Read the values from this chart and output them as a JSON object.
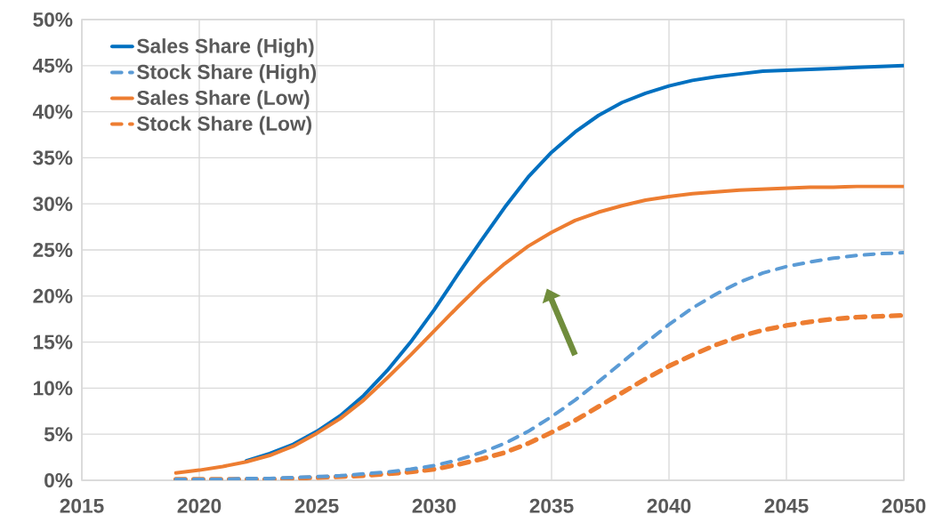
{
  "chart_data": {
    "type": "line",
    "x": [
      2019,
      2020,
      2021,
      2022,
      2023,
      2024,
      2025,
      2026,
      2027,
      2028,
      2029,
      2030,
      2031,
      2032,
      2033,
      2034,
      2035,
      2036,
      2037,
      2038,
      2039,
      2040,
      2041,
      2042,
      2043,
      2044,
      2045,
      2046,
      2047,
      2048,
      2049,
      2050
    ],
    "series": [
      {
        "name": "Sales Share (High)",
        "color": "#0070c0",
        "line_style": "solid",
        "values": [
          null,
          null,
          null,
          2.1,
          2.9,
          3.9,
          5.3,
          7.0,
          9.2,
          11.9,
          15.0,
          18.5,
          22.3,
          26.0,
          29.6,
          32.9,
          35.6,
          37.8,
          39.6,
          41.0,
          42.0,
          42.8,
          43.4,
          43.8,
          44.1,
          44.4,
          44.5,
          44.6,
          44.7,
          44.8,
          44.9,
          45.0
        ]
      },
      {
        "name": "Stock Share (High)",
        "color": "#5b9bd5",
        "line_style": "dashed",
        "values": [
          0.1,
          0.1,
          0.1,
          0.2,
          0.2,
          0.3,
          0.4,
          0.5,
          0.7,
          0.9,
          1.2,
          1.6,
          2.2,
          3.0,
          4.0,
          5.3,
          6.9,
          8.7,
          10.7,
          12.8,
          14.9,
          16.9,
          18.7,
          20.2,
          21.5,
          22.5,
          23.2,
          23.7,
          24.1,
          24.4,
          24.6,
          24.7
        ]
      },
      {
        "name": "Sales Share (Low)",
        "color": "#ed7d31",
        "line_style": "solid",
        "values": [
          0.8,
          1.1,
          1.5,
          2.0,
          2.7,
          3.7,
          5.1,
          6.7,
          8.7,
          11.1,
          13.6,
          16.2,
          18.8,
          21.3,
          23.5,
          25.4,
          26.9,
          28.2,
          29.1,
          29.8,
          30.4,
          30.8,
          31.1,
          31.3,
          31.5,
          31.6,
          31.7,
          31.8,
          31.8,
          31.9,
          31.9,
          31.9
        ]
      },
      {
        "name": "Stock Share (Low)",
        "color": "#ed7d31",
        "line_style": "dashed",
        "values": [
          0.1,
          0.1,
          0.1,
          0.1,
          0.1,
          0.2,
          0.3,
          0.4,
          0.5,
          0.7,
          0.9,
          1.2,
          1.7,
          2.3,
          3.0,
          4.0,
          5.2,
          6.5,
          8.0,
          9.5,
          11.0,
          12.4,
          13.6,
          14.7,
          15.6,
          16.3,
          16.8,
          17.2,
          17.5,
          17.7,
          17.8,
          17.9
        ]
      }
    ],
    "xlim": [
      2015,
      2050
    ],
    "xticks": [
      2015,
      2020,
      2025,
      2030,
      2035,
      2040,
      2045,
      2050
    ],
    "ylim": [
      0,
      50
    ],
    "yticks": [
      {
        "value": 0,
        "label": "0%"
      },
      {
        "value": 5,
        "label": "5%"
      },
      {
        "value": 10,
        "label": "10%"
      },
      {
        "value": 15,
        "label": "15%"
      },
      {
        "value": 20,
        "label": "20%"
      },
      {
        "value": 25,
        "label": "25%"
      },
      {
        "value": 30,
        "label": "30%"
      },
      {
        "value": 35,
        "label": "35%"
      },
      {
        "value": 40,
        "label": "40%"
      },
      {
        "value": 45,
        "label": "45%"
      },
      {
        "value": 50,
        "label": "50%"
      }
    ],
    "grid": true,
    "legend": "top left",
    "marker": "none"
  }
}
